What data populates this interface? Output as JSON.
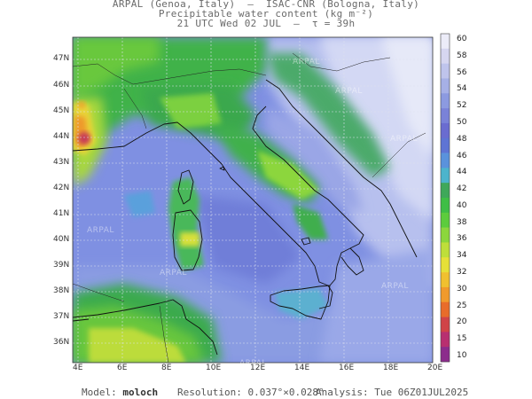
{
  "header": {
    "line1": "ARPAL (Genoa, Italy)  —  ISAC-CNR (Bologna, Italy)",
    "line2": "Precipitable water content (kg m⁻²)",
    "line3": "21 UTC Wed 02 JUL  —  τ = 39h"
  },
  "map": {
    "lat_labels": [
      "47N",
      "46N",
      "45N",
      "44N",
      "43N",
      "42N",
      "41N",
      "40N",
      "39N",
      "38N",
      "37N",
      "36N"
    ],
    "lon_labels": [
      "4E",
      "6E",
      "8E",
      "10E",
      "12E",
      "14E",
      "16E",
      "18E",
      "20E"
    ],
    "watermark": "ARPAL"
  },
  "colorbar": {
    "labels": [
      "60",
      "58",
      "56",
      "54",
      "52",
      "50",
      "48",
      "46",
      "44",
      "42",
      "40",
      "38",
      "36",
      "34",
      "32",
      "30",
      "25",
      "20",
      "15",
      "10"
    ],
    "colors": [
      "#ececf8",
      "#d6d6f0",
      "#bfc4ec",
      "#a6b0e6",
      "#8c9ae0",
      "#7a82d8",
      "#6a6cd0",
      "#5e74d4",
      "#5a92dc",
      "#4cb4cc",
      "#3fa85a",
      "#3fbe46",
      "#5ccc3c",
      "#8cd63c",
      "#bede3a",
      "#e6e038",
      "#f0c030",
      "#f09a2c",
      "#e86c2a",
      "#d04448",
      "#b83070",
      "#8c2c8c"
    ]
  },
  "footer": {
    "model_label": "Model:",
    "model_value": "moloch",
    "resolution": "Resolution: 0.037°×0.028°",
    "analysis": "Analysis: Tue 06Z01JUL2025"
  }
}
